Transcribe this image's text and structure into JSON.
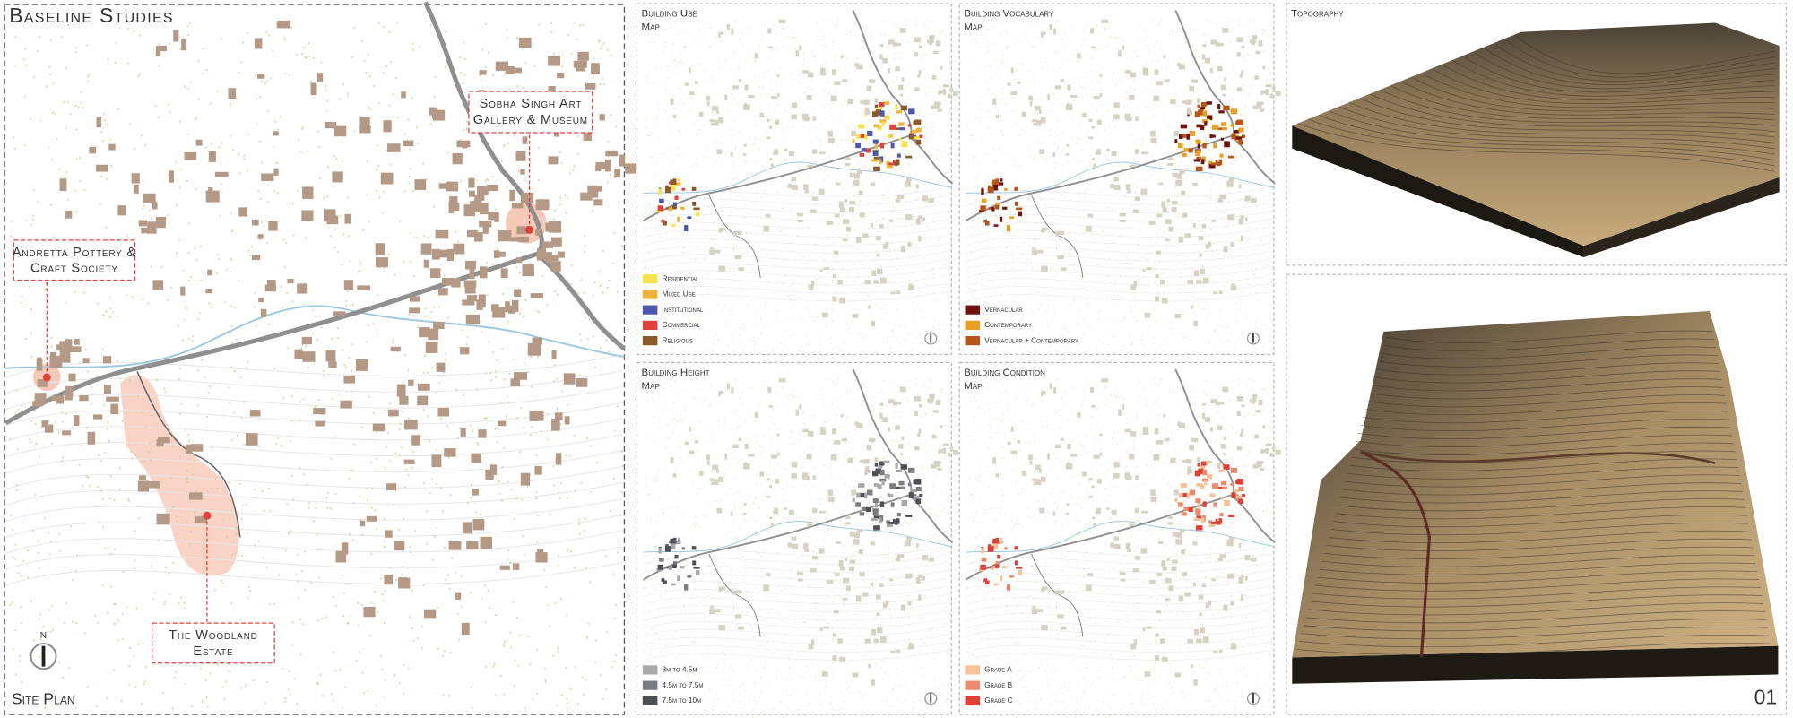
{
  "header": {
    "title": "Baseline Studies"
  },
  "site_plan": {
    "label": "Site Plan",
    "north": "N",
    "callouts": [
      {
        "lines": [
          "Sobha Singh Art",
          "Gallery & Museum"
        ]
      },
      {
        "lines": [
          "Andretta Pottery &",
          "Craft Society"
        ]
      },
      {
        "lines": [
          "The Woodland",
          "Estate"
        ]
      }
    ]
  },
  "maps": [
    {
      "title": "Building Use",
      "subtitle": "Map",
      "legend": [
        {
          "label": "Residential",
          "color": "#f6e34f"
        },
        {
          "label": "Mixed Use",
          "color": "#f2b33d"
        },
        {
          "label": "Institutional",
          "color": "#4b57b0"
        },
        {
          "label": "Commercial",
          "color": "#e2403a"
        },
        {
          "label": "Religious",
          "color": "#8a5a2b"
        }
      ]
    },
    {
      "title": "Building Vocabulary",
      "subtitle": "Map",
      "legend": [
        {
          "label": "Vernacular",
          "color": "#6e1410"
        },
        {
          "label": "Contemporary",
          "color": "#e8a024"
        },
        {
          "label": "Vernacular + Contemporary",
          "color": "#b5561d"
        }
      ]
    },
    {
      "title": "Building Height",
      "subtitle": "Map",
      "legend": [
        {
          "label": "3m to 4.5m",
          "color": "#a9a9ad"
        },
        {
          "label": "4.5m to 7.5m",
          "color": "#7b7b82"
        },
        {
          "label": "7.5m to 10m",
          "color": "#4e4e55"
        }
      ]
    },
    {
      "title": "Building Condition",
      "subtitle": "Map",
      "legend": [
        {
          "label": "Grade A",
          "color": "#f7c19a"
        },
        {
          "label": "Grade B",
          "color": "#ec8a6e"
        },
        {
          "label": "Grade C",
          "color": "#e0403a"
        }
      ]
    }
  ],
  "topography": {
    "title": "Topography"
  },
  "sheet_number": "01"
}
